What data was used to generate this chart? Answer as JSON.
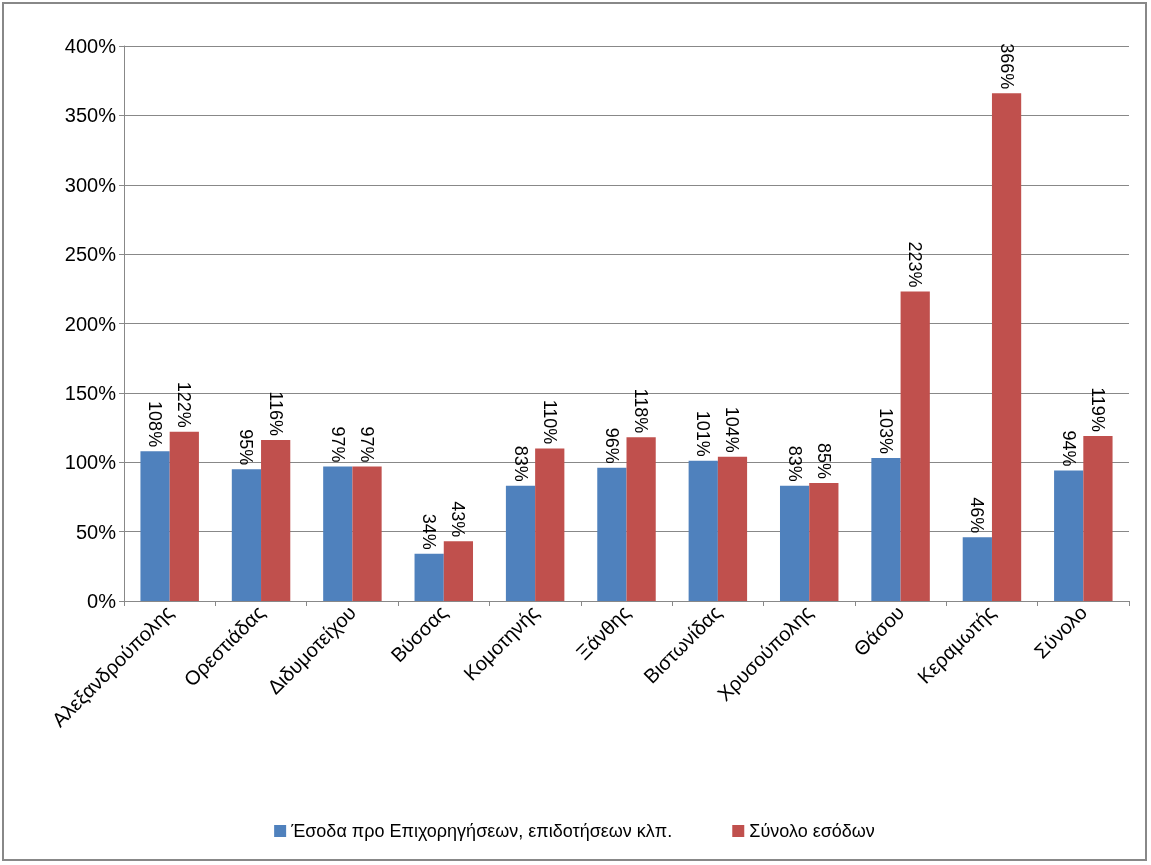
{
  "chart_data": {
    "type": "bar",
    "categories": [
      "Αλεξανδρούπολης",
      "Ορεστιάδας",
      "Διδυμοτείχου",
      "Βύσσας",
      "Κομοτηνής",
      "Ξάνθης",
      "Βιστωνίδας",
      "Χρυσούπολης",
      "Θάσου",
      "Κεραμωτής",
      "Σύνολο"
    ],
    "series": [
      {
        "name": "Έσοδα προ Επιχορηγήσεων, επιδοτήσεων κλπ.",
        "color": "#4f81bd",
        "values": [
          108,
          95,
          97,
          34,
          83,
          96,
          101,
          83,
          103,
          46,
          94
        ],
        "value_labels": [
          "108%",
          "95%",
          "97%",
          "34%",
          "83%",
          "96%",
          "101%",
          "83%",
          "103%",
          "46%",
          "94%"
        ]
      },
      {
        "name": "Σύνολο εσόδων",
        "color": "#c0504d",
        "values": [
          122,
          116,
          97,
          43,
          110,
          118,
          104,
          85,
          223,
          366,
          119
        ],
        "value_labels": [
          "122%",
          "116%",
          "97%",
          "43%",
          "110%",
          "118%",
          "104%",
          "85%",
          "223%",
          "366%",
          "119%"
        ]
      }
    ],
    "ylim": [
      0,
      400
    ],
    "yticks": [
      {
        "value": 0,
        "label": "0%"
      },
      {
        "value": 50,
        "label": "50%"
      },
      {
        "value": 100,
        "label": "100%"
      },
      {
        "value": 150,
        "label": "150%"
      },
      {
        "value": 200,
        "label": "200%"
      },
      {
        "value": 250,
        "label": "250%"
      },
      {
        "value": 300,
        "label": "300%"
      },
      {
        "value": 350,
        "label": "350%"
      },
      {
        "value": 400,
        "label": "400%"
      }
    ],
    "grid": "y",
    "legend": "bottom"
  }
}
